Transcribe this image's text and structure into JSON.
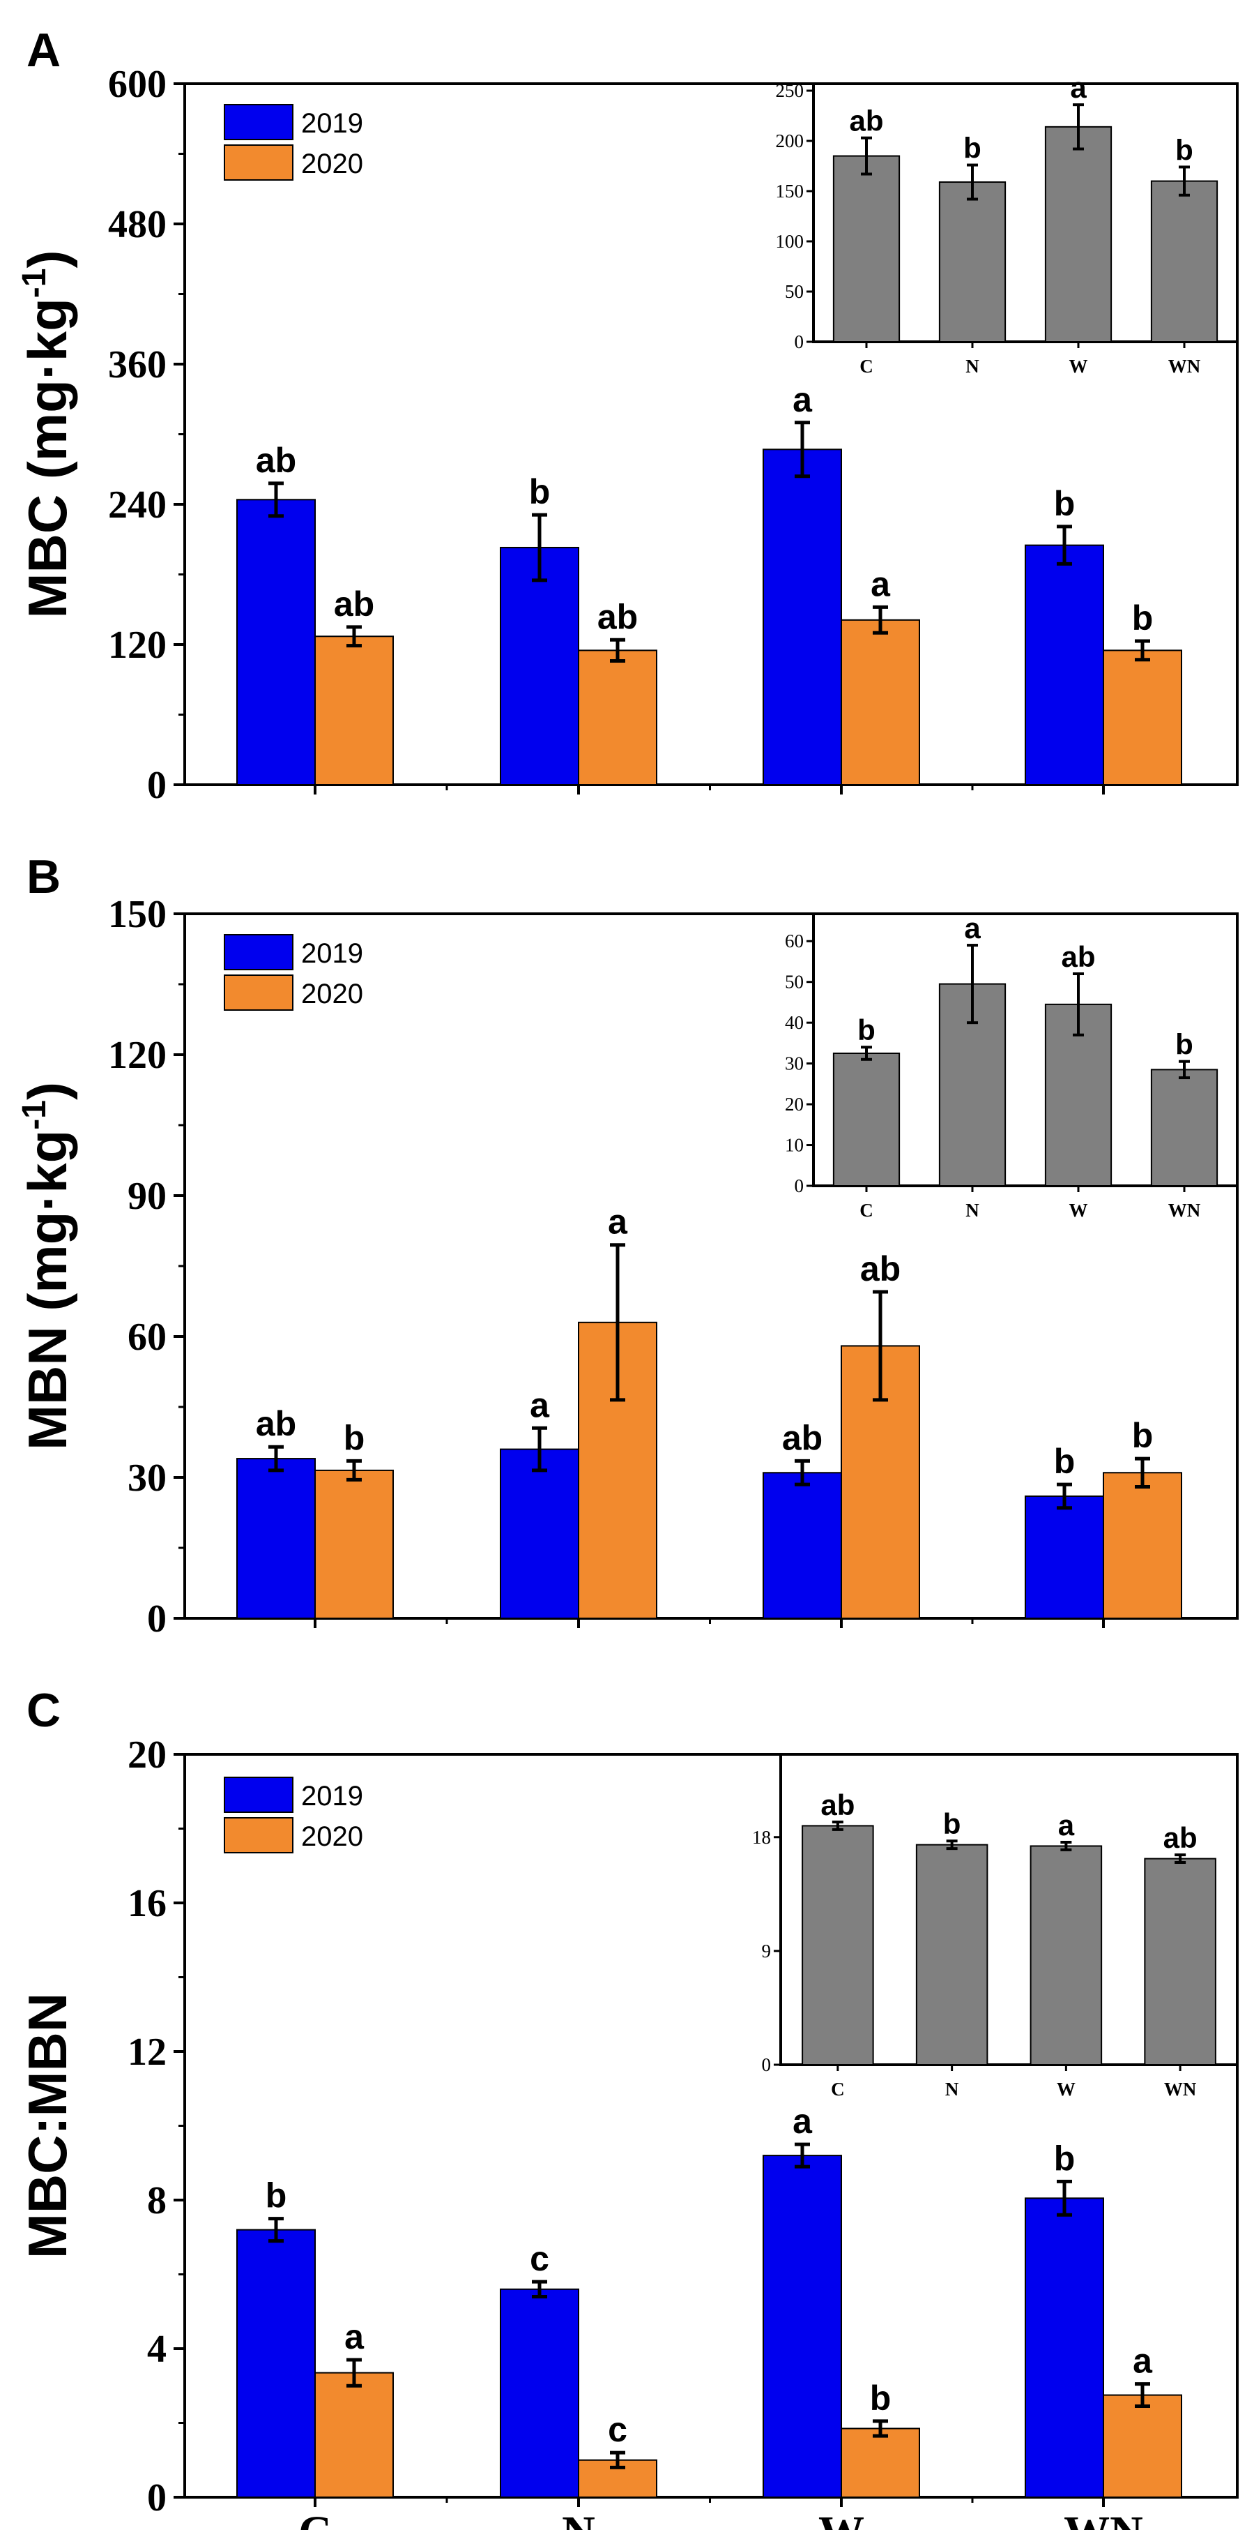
{
  "chart_data": [
    {
      "type": "bar",
      "panel": "A",
      "ylabel": "MBC (mg·kg",
      "ylabel_sup": "-1",
      "ylabel_close": ")",
      "ylim": [
        0,
        600
      ],
      "yticks": [
        0,
        120,
        240,
        360,
        480,
        600
      ],
      "categories": [
        "C",
        "N",
        "W",
        "WN"
      ],
      "series": [
        {
          "name": "2019",
          "color": "#0000ee",
          "values": [
            244,
            203,
            287,
            205
          ],
          "errors": [
            14,
            28,
            23,
            16
          ],
          "labels": [
            "ab",
            "b",
            "a",
            "b"
          ]
        },
        {
          "name": "2020",
          "color": "#f28a2e",
          "values": [
            127,
            115,
            141,
            115
          ],
          "errors": [
            8,
            9,
            11,
            8
          ],
          "labels": [
            "ab",
            "ab",
            "a",
            "b"
          ]
        }
      ],
      "legend": "top-left",
      "inset": {
        "ylim": [
          0,
          250
        ],
        "yticks": [
          0,
          50,
          100,
          150,
          200,
          250
        ],
        "categories": [
          "C",
          "N",
          "W",
          "WN"
        ],
        "values": [
          185,
          159,
          214,
          160
        ],
        "errors": [
          18,
          17,
          22,
          14
        ],
        "labels": [
          "ab",
          "b",
          "a",
          "b"
        ],
        "color": "#808080"
      }
    },
    {
      "type": "bar",
      "panel": "B",
      "ylabel": "MBN (mg·kg",
      "ylabel_sup": "-1",
      "ylabel_close": ")",
      "ylim": [
        0,
        150
      ],
      "yticks": [
        0,
        30,
        60,
        90,
        120,
        150
      ],
      "categories": [
        "C",
        "N",
        "W",
        "WN"
      ],
      "series": [
        {
          "name": "2019",
          "color": "#0000ee",
          "values": [
            34,
            36,
            31,
            26
          ],
          "errors": [
            2.5,
            4.5,
            2.5,
            2.5
          ],
          "labels": [
            "ab",
            "a",
            "ab",
            "b"
          ]
        },
        {
          "name": "2020",
          "color": "#f28a2e",
          "values": [
            31.5,
            63,
            58,
            31
          ],
          "errors": [
            2,
            16.5,
            11.5,
            3
          ],
          "labels": [
            "b",
            "a",
            "ab",
            "b"
          ]
        }
      ],
      "legend": "top-left",
      "inset": {
        "ylim": [
          0,
          65
        ],
        "yticks": [
          0,
          10,
          20,
          30,
          40,
          50,
          60
        ],
        "categories": [
          "C",
          "N",
          "W",
          "WN"
        ],
        "values": [
          32.5,
          49.5,
          44.5,
          28.5
        ],
        "errors": [
          1.5,
          9.5,
          7.5,
          2
        ],
        "labels": [
          "b",
          "a",
          "ab",
          "b"
        ],
        "color": "#808080"
      }
    },
    {
      "type": "bar",
      "panel": "C",
      "ylabel": "MBC:MBN",
      "ylabel_sup": "",
      "ylabel_close": "",
      "ylim": [
        0,
        20
      ],
      "yticks": [
        0,
        4,
        8,
        12,
        16,
        20
      ],
      "categories": [
        "C",
        "N",
        "W",
        "WN"
      ],
      "series": [
        {
          "name": "2019",
          "color": "#0000ee",
          "values": [
            7.2,
            5.6,
            9.2,
            8.05
          ],
          "errors": [
            0.3,
            0.2,
            0.3,
            0.45
          ],
          "labels": [
            "b",
            "c",
            "a",
            "b"
          ]
        },
        {
          "name": "2020",
          "color": "#f28a2e",
          "values": [
            3.35,
            1.0,
            1.85,
            2.75
          ],
          "errors": [
            0.35,
            0.2,
            0.2,
            0.3
          ],
          "labels": [
            "a",
            "c",
            "b",
            "a"
          ]
        }
      ],
      "legend": "top-left",
      "inset": {
        "ylim": [
          0,
          24
        ],
        "yticks": [
          0,
          9,
          18
        ],
        "categories": [
          "C",
          "N",
          "W",
          "WN"
        ],
        "values": [
          18.9,
          17.4,
          17.3,
          16.3
        ],
        "errors": [
          0.3,
          0.3,
          0.3,
          0.3
        ],
        "labels": [
          "ab",
          "b",
          "a",
          "ab"
        ],
        "color": "#808080"
      }
    }
  ]
}
